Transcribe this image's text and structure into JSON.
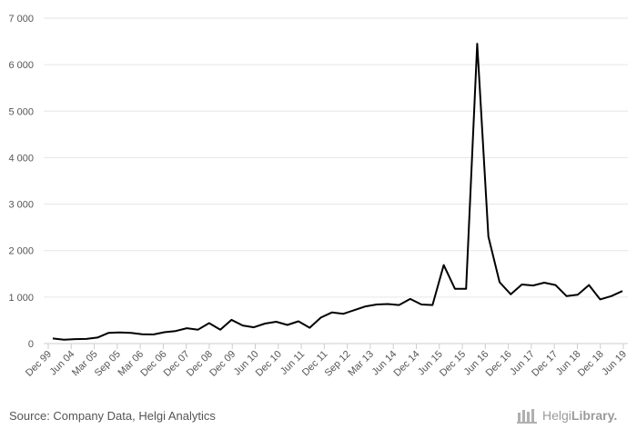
{
  "chart_data": {
    "type": "line",
    "title": "",
    "xlabel": "",
    "ylabel": "",
    "ylim": [
      0,
      7000
    ],
    "yticks": [
      0,
      1000,
      2000,
      3000,
      4000,
      5000,
      6000,
      7000
    ],
    "ytick_labels": [
      "0",
      "1 000",
      "2 000",
      "3 000",
      "4 000",
      "5 000",
      "6 000",
      "7 000"
    ],
    "grid": "horizontal",
    "legend": "none",
    "line_color": "#000000",
    "x_labels": [
      "Dec 99",
      "Jun 04",
      "Mar 05",
      "Sep 05",
      "Mar 06",
      "Dec 06",
      "Dec 07",
      "Dec 08",
      "Dec 09",
      "Jun 10",
      "Dec 10",
      "Jun 11",
      "Dec 11",
      "Sep 12",
      "Mar 13",
      "Jun 14",
      "Dec 14",
      "Jun 15",
      "Dec 15",
      "Jun 16",
      "Dec 16",
      "Jun 17",
      "Dec 17",
      "Jun 18",
      "Dec 18",
      "Jun 19"
    ],
    "series": [
      {
        "values": [
          110,
          85,
          95,
          100,
          130,
          230,
          240,
          230,
          200,
          195,
          245,
          270,
          330,
          300,
          440,
          300,
          510,
          390,
          350,
          430,
          470,
          400,
          480,
          340,
          560,
          670,
          640,
          720,
          800,
          840,
          850,
          830,
          960,
          840,
          830,
          1690,
          1180,
          1180,
          6450,
          2300,
          1320,
          1060,
          1270,
          1250,
          1310,
          1260,
          1020,
          1050,
          1260,
          950,
          1020,
          1130
        ]
      }
    ]
  },
  "footer": {
    "source": "Source: Company Data, Helgi Analytics",
    "brand_light": "Helgi",
    "brand_strong": "Library."
  }
}
